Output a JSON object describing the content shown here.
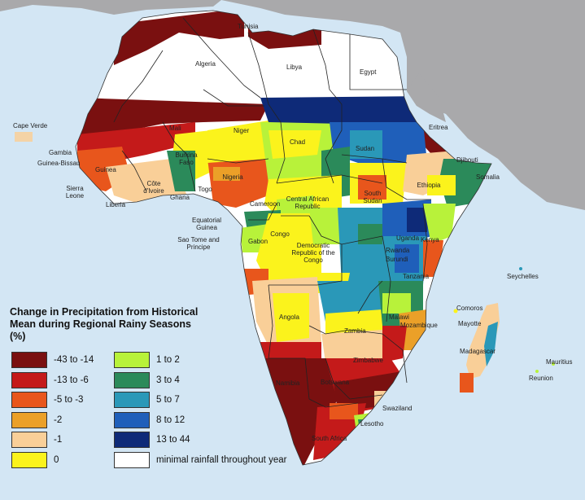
{
  "legend": {
    "title": "Change in Precipitation from Historical Mean during Regional Rainy Seasons (%)",
    "classes": [
      {
        "label": "-43 to -14",
        "color": "#7a1010"
      },
      {
        "label": "-13 to -6",
        "color": "#c41a1a"
      },
      {
        "label": "-5 to -3",
        "color": "#e8561c"
      },
      {
        "label": "-2",
        "color": "#eba028"
      },
      {
        "label": "-1",
        "color": "#f9cf98"
      },
      {
        "label": "0",
        "color": "#fbf31c"
      },
      {
        "label": "1 to 2",
        "color": "#b8f23a"
      },
      {
        "label": "3 to 4",
        "color": "#2b8a5a"
      },
      {
        "label": "5 to 7",
        "color": "#2a98b8"
      },
      {
        "label": "8 to 12",
        "color": "#1f5fba"
      },
      {
        "label": "13 to 44",
        "color": "#0e2a78"
      },
      {
        "label": "minimal rainfall throughout year",
        "color": "#ffffff"
      }
    ]
  },
  "countries": [
    "Tunisia",
    "Algeria",
    "Libya",
    "Egypt",
    "Cape Verde",
    "Mali",
    "Niger",
    "Chad",
    "Sudan",
    "Eritrea",
    "Gambia",
    "Guinea-Bissau",
    "Guinea",
    "Burkina Faso",
    "Nigeria",
    "Djibouti",
    "Somalia",
    "Ethiopia",
    "Sierra Leone",
    "Côte d'Ivoire",
    "Ghana",
    "Togo",
    "Liberia",
    "Cameroon",
    "Central African Republic",
    "South Sudan",
    "Equatorial Guinea",
    "Sao Tome and Principe",
    "Gabon",
    "Congo",
    "Democratic Republic of the Congo",
    "Uganda",
    "Kenya",
    "Rwanda",
    "Burundi",
    "Tanzania",
    "Seychelles",
    "Angola",
    "Zambia",
    "Malawi",
    "Comoros",
    "Mayotte",
    "Mozambique",
    "Madagascar",
    "Zimbabwe",
    "Namibia",
    "Botswana",
    "Mauritius",
    "Reunion",
    "Swaziland",
    "Lesotho",
    "South Africa"
  ]
}
